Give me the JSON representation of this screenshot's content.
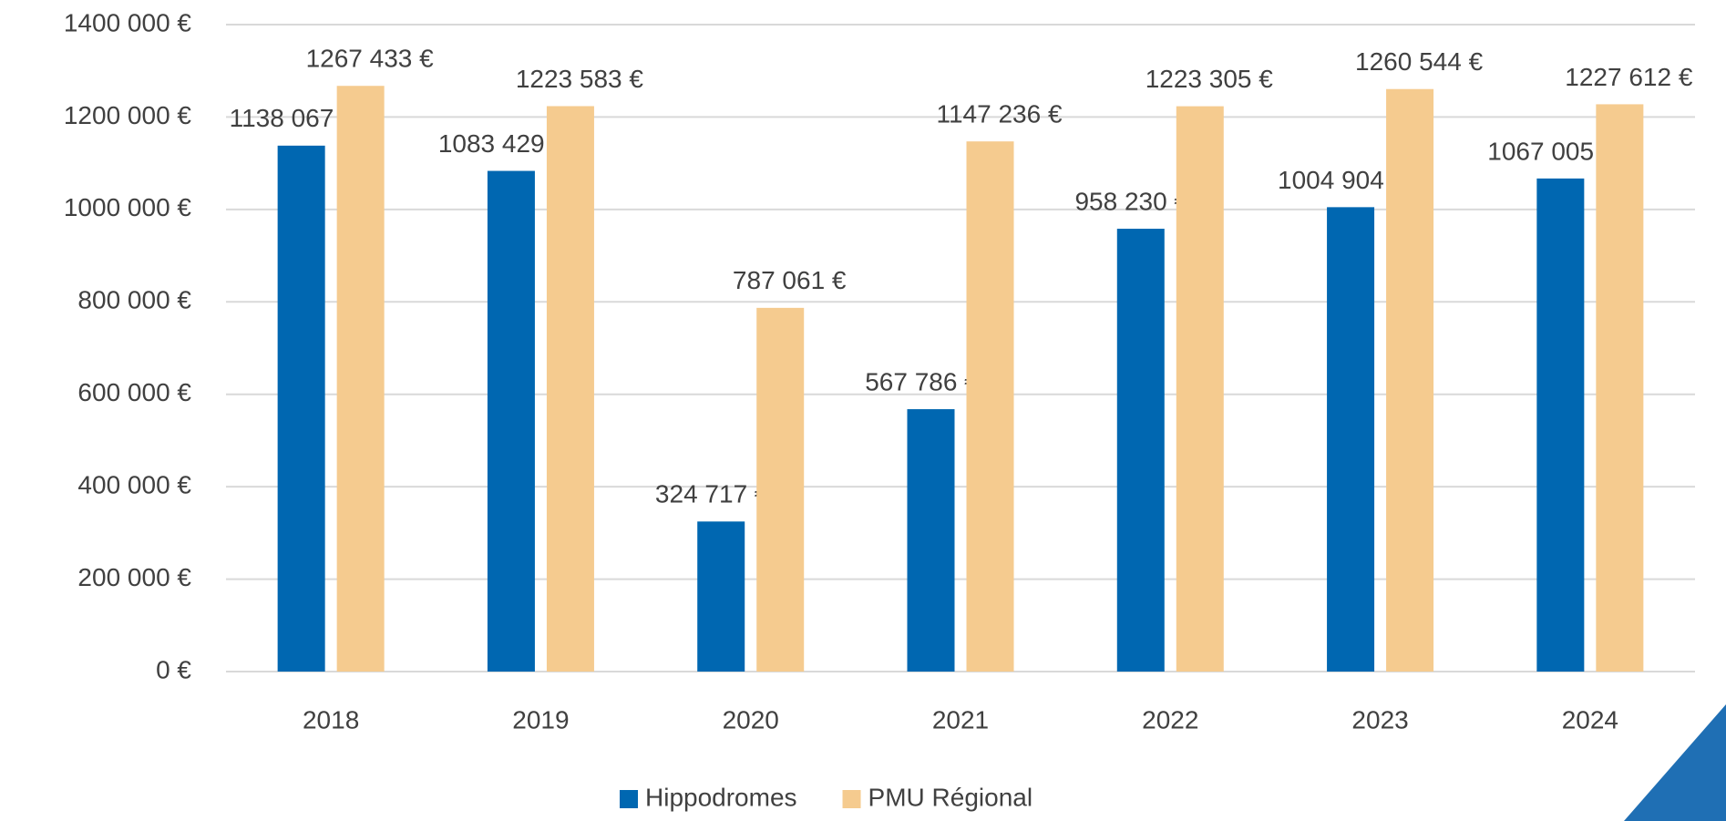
{
  "chart_data": {
    "type": "bar",
    "categories": [
      "2018",
      "2019",
      "2020",
      "2021",
      "2022",
      "2023",
      "2024"
    ],
    "series": [
      {
        "name": "Hippodromes",
        "color": "#0067b1",
        "values": [
          1138067,
          1083429,
          324717,
          567786,
          958230,
          1004904,
          1067005
        ],
        "value_labels": [
          "1138 067 €",
          "1083 429 €",
          "324 717 €",
          "567 786 €",
          "958 230 €",
          "1004 904 €",
          "1067 005 €"
        ]
      },
      {
        "name": "PMU Régional",
        "color": "#f5cb8f",
        "values": [
          1267433,
          1223583,
          787061,
          1147236,
          1223305,
          1260544,
          1227612
        ],
        "value_labels": [
          "1267 433 €",
          "1223 583 €",
          "787 061 €",
          "1147 236 €",
          "1223 305 €",
          "1260 544 €",
          "1227 612 €"
        ]
      }
    ],
    "ylim": [
      0,
      1400000
    ],
    "yticks": [
      {
        "value": 0,
        "label": "0 €"
      },
      {
        "value": 200000,
        "label": "200 000 €"
      },
      {
        "value": 400000,
        "label": "400 000 €"
      },
      {
        "value": 600000,
        "label": "600 000 €"
      },
      {
        "value": 800000,
        "label": "800 000 €"
      },
      {
        "value": 1000000,
        "label": "1000 000 €"
      },
      {
        "value": 1200000,
        "label": "1200 000 €"
      },
      {
        "value": 1400000,
        "label": "1400 000 €"
      }
    ],
    "grid": true,
    "legend": "bottom"
  }
}
